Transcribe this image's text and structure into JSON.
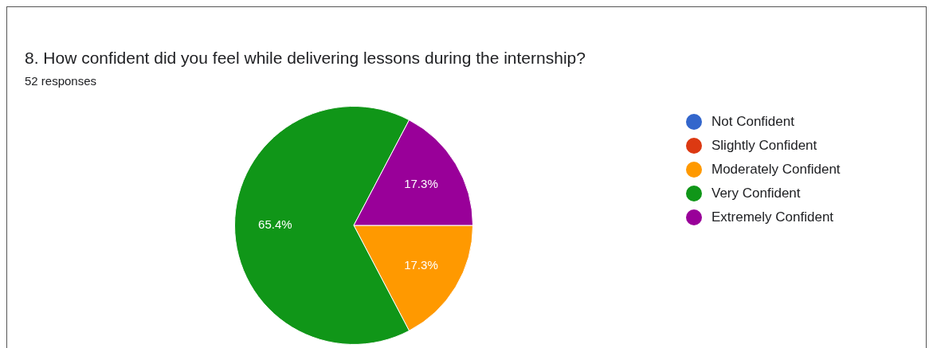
{
  "chart_data": {
    "type": "pie",
    "title": "8. How confident did you feel while delivering lessons during the internship?",
    "subtitle": "52 responses",
    "categories": [
      "Not Confident",
      "Slightly Confident",
      "Moderately Confident",
      "Very Confident",
      "Extremely Confident"
    ],
    "values": [
      0,
      0,
      17.3,
      65.4,
      17.3
    ],
    "colors": [
      "#3366cc",
      "#dc3912",
      "#ff9900",
      "#109618",
      "#990099"
    ],
    "value_labels": [
      null,
      null,
      "17.3%",
      "65.4%",
      "17.3%"
    ],
    "legend": "right"
  }
}
